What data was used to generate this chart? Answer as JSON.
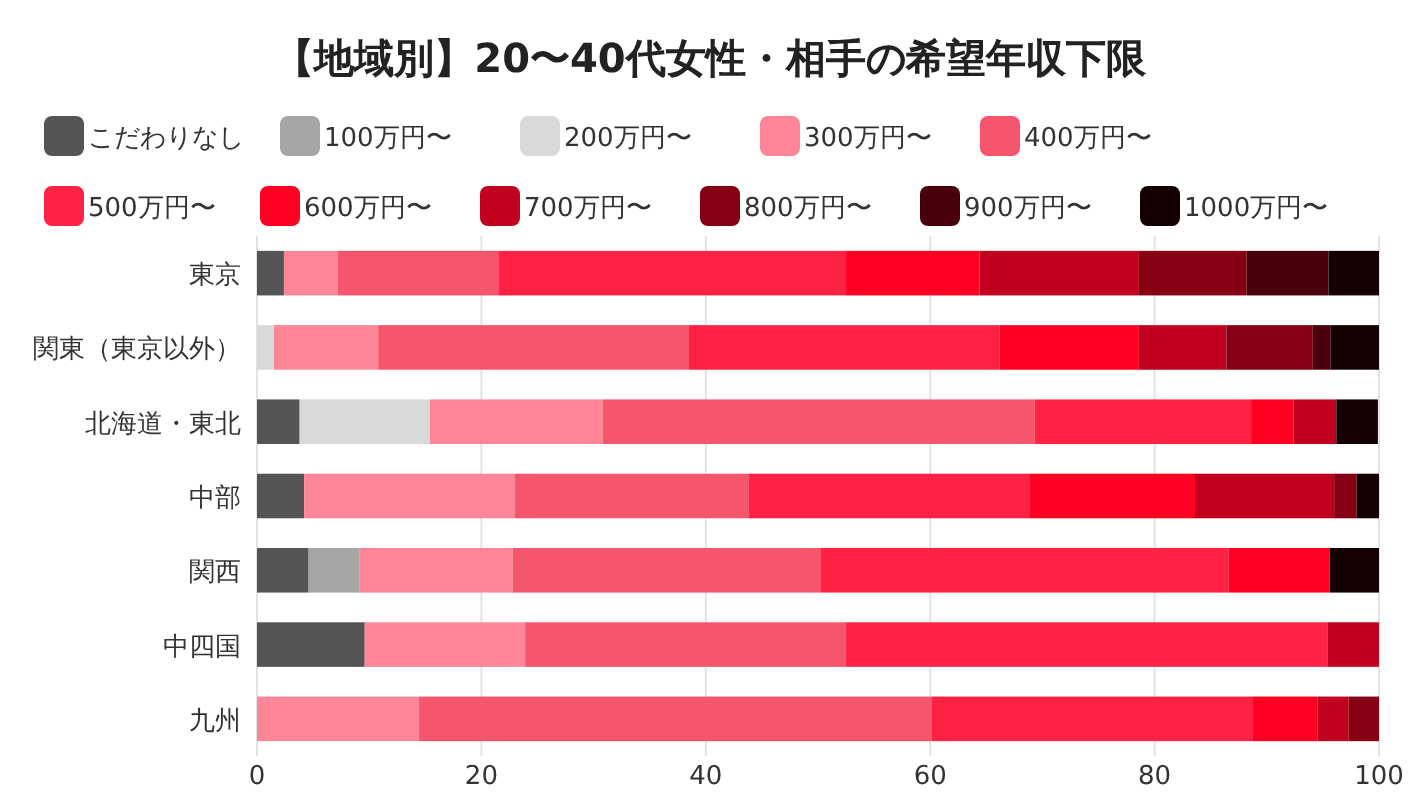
{
  "chart_data": {
    "type": "bar",
    "orientation": "horizontal",
    "stacked": true,
    "title": "【地域別】20〜40代女性・相手の希望年収下限",
    "categories": [
      "東京",
      "関東（東京以外）",
      "北海道・東北",
      "中部",
      "関西",
      "中四国",
      "九州"
    ],
    "series": [
      {
        "name": "こだわりなし",
        "color": "#555555",
        "values": [
          2.4,
          0,
          3.8,
          4.2,
          4.6,
          9.6,
          0
        ]
      },
      {
        "name": "100万円〜",
        "color": "#a6a6a6",
        "values": [
          0,
          0,
          0,
          0,
          4.5,
          0,
          0
        ]
      },
      {
        "name": "200万円〜",
        "color": "#d9d9d9",
        "values": [
          0,
          1.5,
          11.6,
          0,
          0,
          0,
          0
        ]
      },
      {
        "name": "300万円〜",
        "color": "#ff8599",
        "values": [
          4.8,
          9.3,
          15.4,
          18.8,
          13.7,
          14.3,
          14.4
        ]
      },
      {
        "name": "400万円〜",
        "color": "#f5566e",
        "values": [
          14.3,
          27.7,
          38.5,
          20.8,
          27.4,
          28.6,
          45.7
        ]
      },
      {
        "name": "500万円〜",
        "color": "#ff2244",
        "values": [
          31.0,
          27.7,
          19.3,
          25.1,
          36.4,
          42.9,
          28.6
        ]
      },
      {
        "name": "600万円〜",
        "color": "#ff0022",
        "values": [
          11.9,
          12.4,
          3.8,
          14.7,
          9.0,
          0,
          5.8
        ]
      },
      {
        "name": "700万円〜",
        "color": "#c0001e",
        "values": [
          14.2,
          7.8,
          3.8,
          12.4,
          0,
          4.6,
          2.8
        ]
      },
      {
        "name": "800万円〜",
        "color": "#850012",
        "values": [
          9.6,
          7.7,
          0,
          2.0,
          0,
          0,
          2.7
        ]
      },
      {
        "name": "900万円〜",
        "color": "#4a000a",
        "values": [
          7.3,
          1.6,
          0,
          0,
          0,
          0,
          0
        ]
      },
      {
        "name": "1000万円〜",
        "color": "#140000",
        "values": [
          4.5,
          4.3,
          3.7,
          2.0,
          4.4,
          0,
          0
        ]
      }
    ],
    "xlim": [
      0,
      100
    ],
    "xticks": [
      0,
      20,
      40,
      60,
      80,
      100
    ],
    "grid": "x",
    "legend": "top"
  }
}
